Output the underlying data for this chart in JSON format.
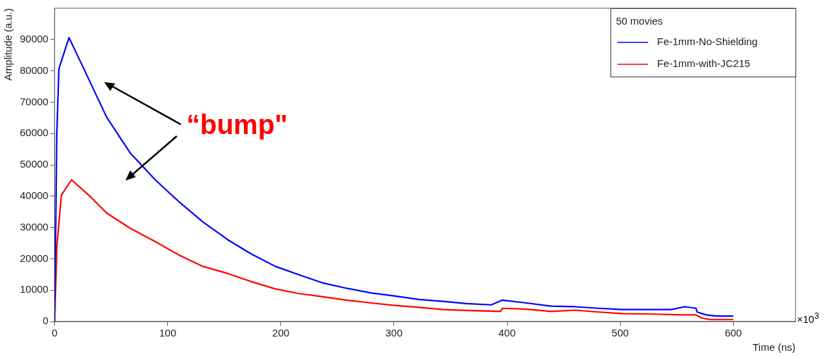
{
  "chart_data": {
    "type": "line",
    "xlabel": "Time (ns)",
    "ylabel": "Amplitude (a.u.)",
    "legend_title": "50 movies",
    "legend": "top right",
    "grid": false,
    "marker": "none",
    "line_style": "solid",
    "xlim": [
      0,
      655
    ],
    "ylim": [
      0,
      100000
    ],
    "xticks": [
      0,
      100,
      200,
      300,
      400,
      500,
      600
    ],
    "yticks": [
      0,
      10000,
      20000,
      30000,
      40000,
      50000,
      60000,
      70000,
      80000,
      90000
    ],
    "annotations": [
      "“bump\"",
      "×10$^{3}$"
    ],
    "series": [
      {
        "name": "Fe-1mm-No-Shielding",
        "color": "#0000ff",
        "x": [
          0,
          1.9,
          3.8,
          12.7,
          25,
          46,
          67,
          89,
          110,
          131,
          153,
          174,
          195,
          216,
          237,
          258,
          280,
          301,
          322,
          343,
          364,
          386,
          396,
          417,
          439,
          460,
          481,
          502,
          523,
          545,
          557,
          567,
          568,
          576,
          585,
          600
        ],
        "values": [
          0,
          59400,
          80700,
          90600,
          81300,
          65200,
          53700,
          45200,
          38200,
          31800,
          26100,
          21500,
          17600,
          14900,
          12300,
          10600,
          9100,
          8100,
          7000,
          6400,
          5700,
          5300,
          6800,
          5900,
          4900,
          4700,
          4200,
          3800,
          3800,
          3800,
          4700,
          4200,
          3000,
          2100,
          1700,
          1700
        ]
      },
      {
        "name": "Fe-1mm-with-JC215",
        "color": "#ff0000",
        "x": [
          0,
          2,
          6,
          15,
          32,
          46,
          67,
          89,
          110,
          131,
          153,
          174,
          195,
          216,
          237,
          258,
          280,
          301,
          322,
          343,
          364,
          394,
          396,
          417,
          439,
          460,
          481,
          502,
          523,
          555,
          567,
          572,
          579,
          600
        ],
        "values": [
          0,
          24000,
          40300,
          45200,
          39700,
          34600,
          29700,
          25500,
          21200,
          17600,
          15300,
          12700,
          10400,
          8900,
          7900,
          6800,
          5900,
          5100,
          4500,
          3800,
          3500,
          3200,
          4200,
          3900,
          3200,
          3600,
          3000,
          2500,
          2400,
          2100,
          2100,
          1100,
          600,
          600
        ]
      }
    ]
  }
}
